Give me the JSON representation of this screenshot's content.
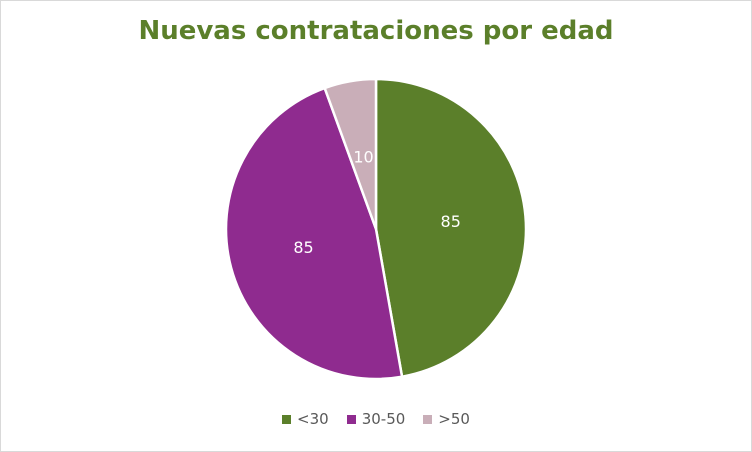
{
  "chart_data": {
    "type": "pie",
    "title": "Nuevas contrataciones por edad",
    "categories": [
      "<30",
      "30-50",
      ">50"
    ],
    "values": [
      85,
      85,
      10
    ],
    "colors": [
      "#5b7f2a",
      "#8f2b8f",
      "#c9aeb8"
    ],
    "data_labels": [
      "85",
      "85",
      "10"
    ],
    "legend_position": "bottom"
  }
}
